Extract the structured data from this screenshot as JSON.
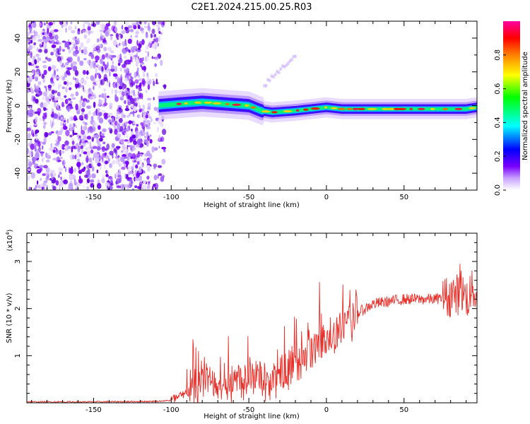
{
  "chart_data": [
    {
      "type": "heatmap",
      "title": "C2E1.2024.215.00.25.R03",
      "xlabel": "Height of straight line (km)",
      "ylabel": "Frequency (Hz)",
      "xlim": [
        -193,
        97
      ],
      "ylim": [
        -50,
        50
      ],
      "xticks": [
        -150,
        -100,
        -50,
        0,
        50
      ],
      "yticks": [
        -40,
        -20,
        0,
        20,
        40
      ],
      "noise_region_x": [
        -193,
        -108
      ],
      "signal_ridge": {
        "x": [
          -108,
          -95,
          -80,
          -65,
          -50,
          -42,
          -35,
          -20,
          -10,
          0,
          10,
          30,
          50,
          70,
          90,
          97
        ],
        "frequency": [
          0,
          1,
          2,
          1,
          0,
          -3,
          -4,
          -3,
          -2,
          -1,
          -2,
          -2,
          -2,
          -2,
          -2,
          -1
        ]
      },
      "faint_streak": {
        "x": [
          -40,
          -20
        ],
        "frequency": [
          12,
          30
        ]
      },
      "colorbar": {
        "label": "Normalized spectral amplitude",
        "ticks": [
          "0.0",
          "0.2",
          "0.4",
          "0.6",
          "0.8"
        ],
        "range": [
          0,
          1
        ],
        "colormap": [
          "#ffffff",
          "#c8a2ff",
          "#7a00ff",
          "#0000ff",
          "#00ffff",
          "#00ff00",
          "#ffff00",
          "#ff8000",
          "#ff0000",
          "#ff00a0"
        ]
      }
    },
    {
      "type": "line",
      "xlabel": "Height of straight line (km)",
      "ylabel": "SNR (10 * v/v)",
      "scale_label": "(x10",
      "scale_exp": "4",
      "scale_close": ")",
      "xlim": [
        -193,
        97
      ],
      "ylim": [
        0,
        3.6
      ],
      "xticks": [
        -150,
        -100,
        -50,
        0,
        50
      ],
      "yticks": [
        1,
        2,
        3
      ],
      "line_color": "#e8302a",
      "series": [
        {
          "x": [
            -193,
            -150,
            -110,
            -100,
            -92,
            -85,
            -75,
            -65,
            -55,
            -45,
            -38,
            -30,
            -25,
            -20,
            -15,
            -10,
            -5,
            0,
            5,
            10,
            15,
            20,
            25,
            30,
            40,
            50,
            60,
            70,
            78,
            82,
            85,
            88,
            90,
            93,
            95,
            97
          ],
          "values": [
            0.02,
            0.02,
            0.03,
            0.05,
            0.15,
            0.35,
            0.4,
            0.45,
            0.5,
            0.55,
            0.4,
            0.55,
            0.7,
            0.85,
            0.9,
            1.05,
            1.2,
            1.4,
            1.45,
            1.6,
            1.7,
            1.9,
            2.0,
            2.1,
            2.15,
            2.2,
            2.2,
            2.2,
            2.25,
            2.3,
            2.3,
            2.35,
            2.2,
            2.35,
            2.4,
            2.3
          ]
        }
      ]
    }
  ]
}
